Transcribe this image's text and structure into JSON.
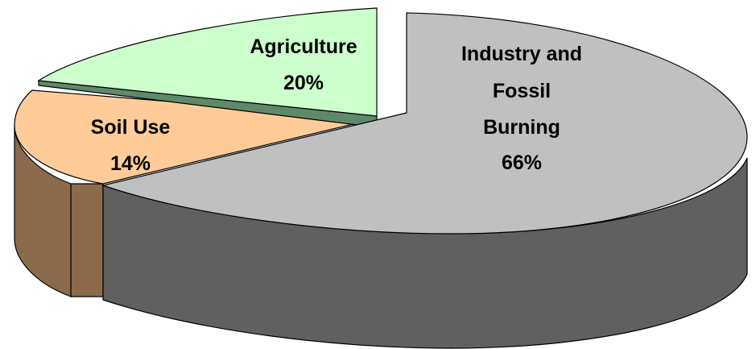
{
  "chart_data": {
    "type": "pie",
    "style": "3d-exploded",
    "title": "",
    "slices": [
      {
        "label": "Industry and Fossil Burning",
        "value": 66,
        "value_label": "66%",
        "color": "#c0c0c0",
        "side_color": "#606060",
        "exploded": true
      },
      {
        "label": "Soil Use",
        "value": 14,
        "value_label": "14%",
        "color": "#ffcc99",
        "side_color": "#8c6a4c"
      },
      {
        "label": "Agriculture",
        "value": 20,
        "value_label": "20%",
        "color": "#ccffcc",
        "side_color": "#5f8a6a"
      }
    ],
    "label_lines": {
      "Industry and Fossil Burning": [
        "Industry and",
        "Fossil",
        "Burning",
        "66%"
      ],
      "Soil Use": [
        "Soil Use",
        "14%"
      ],
      "Agriculture": [
        "Agriculture",
        "20%"
      ]
    }
  }
}
